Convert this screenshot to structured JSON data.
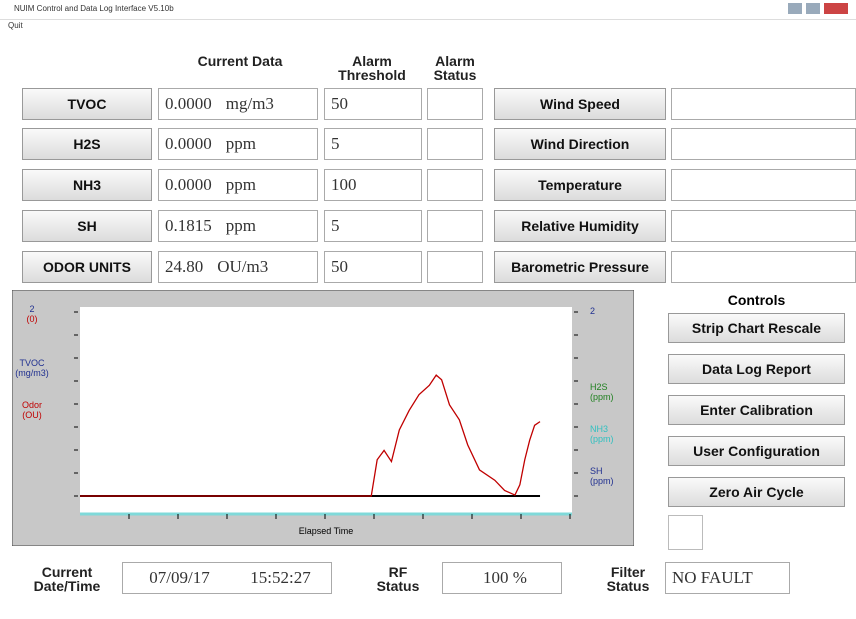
{
  "window": {
    "title": "NUIM Control and Data Log Interface V5.10b",
    "menu": [
      "Quit"
    ]
  },
  "headers": {
    "current_data": "Current Data",
    "alarm_threshold": "Alarm Threshold",
    "alarm_status": "Alarm Status"
  },
  "sensors": [
    {
      "label": "TVOC",
      "value": "0.0000",
      "unit": "mg/m3",
      "threshold": "50"
    },
    {
      "label": "H2S",
      "value": "0.0000",
      "unit": "ppm",
      "threshold": "5"
    },
    {
      "label": "NH3",
      "value": "0.0000",
      "unit": "ppm",
      "threshold": "100"
    },
    {
      "label": "SH",
      "value": "0.1815",
      "unit": "ppm",
      "threshold": "5"
    },
    {
      "label": "ODOR UNITS",
      "value": "24.80",
      "unit": "OU/m3",
      "threshold": "50"
    }
  ],
  "weather": [
    "Wind Speed",
    "Wind Direction",
    "Temperature",
    "Relative Humidity",
    "Barometric Pressure"
  ],
  "controls": {
    "title": "Controls",
    "buttons": [
      "Strip Chart Rescale",
      "Data Log Report",
      "Enter Calibration",
      "User Configuration",
      "Zero Air Cycle"
    ]
  },
  "strip_chart": {
    "type": "line",
    "xlabel": "Elapsed Time",
    "left_labels": [
      "2",
      "(0)",
      "TVOC",
      "(mg/m3)",
      "Odor",
      "(OU)"
    ],
    "right_labels": [
      "2",
      "H2S",
      "(ppm)",
      "NH3",
      "(ppm)",
      "SH",
      "(ppm)"
    ],
    "xlim": [
      0,
      100
    ],
    "ylim": [
      0,
      2
    ],
    "series": [
      {
        "color": "#000000",
        "x": [
          0,
          93.5
        ],
        "values": [
          0,
          0
        ]
      },
      {
        "color": "#c00000",
        "x": [
          0,
          59.2,
          60.4,
          61.8,
          63.3,
          64.9,
          66.9,
          68.9,
          71.0,
          72.4,
          73.5,
          75.1,
          77.1,
          78.8,
          81.2,
          84.3,
          86.3,
          88.4,
          89.4,
          90.4,
          91.4,
          92.4,
          93.5
        ],
        "values": [
          0,
          0,
          0.39,
          0.49,
          0.37,
          0.71,
          0.92,
          1.09,
          1.19,
          1.3,
          1.25,
          0.98,
          0.82,
          0.55,
          0.28,
          0.17,
          0.06,
          0.01,
          0.12,
          0.39,
          0.6,
          0.76,
          0.8
        ]
      }
    ]
  },
  "status": {
    "datetime_label": "Current Date/Time",
    "date": "07/09/17",
    "time": "15:52:27",
    "rf_label": "RF Status",
    "rf_value": "100 %",
    "filter_label": "Filter Status",
    "filter_value": "NO FAULT"
  }
}
